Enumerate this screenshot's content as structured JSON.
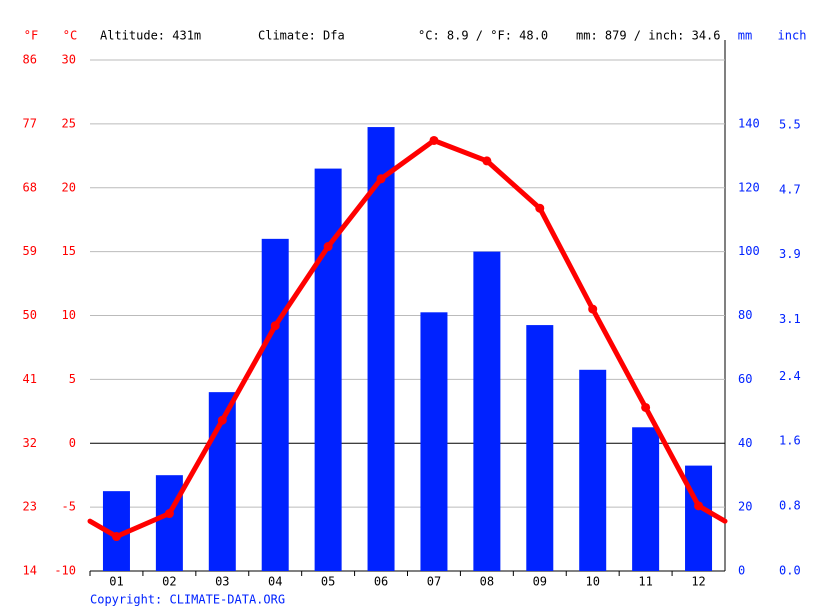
{
  "chart_data": {
    "type": "climate",
    "header": [
      "Altitude: 431m",
      "Climate: Dfa",
      "°C: 8.9 / °F: 48.0",
      "mm: 879 / inch: 34.6"
    ],
    "footer": "Copyright: CLIMATE-DATA.ORG",
    "y_label": "°C",
    "y3_label": "°F",
    "y2_label": "mm",
    "y4_label": "inch",
    "categories": [
      "01",
      "02",
      "03",
      "04",
      "05",
      "06",
      "07",
      "08",
      "09",
      "10",
      "11",
      "12"
    ],
    "series": [
      {
        "type": "bar",
        "axis": "y2",
        "color": "#0022ff",
        "values": [
          25,
          30,
          56,
          104,
          126,
          139,
          81,
          100,
          77,
          63,
          45,
          33
        ]
      },
      {
        "type": "line",
        "axis": "y",
        "color": "#ff0000",
        "values": [
          -7.3,
          -5.5,
          1.8,
          9.2,
          15.4,
          20.7,
          23.7,
          22.1,
          18.4,
          10.5,
          2.8,
          -4.9
        ]
      }
    ],
    "ylim": [
      -10,
      30
    ],
    "yticks": [
      -10,
      -5,
      0,
      5,
      10,
      15,
      20,
      25,
      30
    ],
    "y3lim": [
      14,
      86
    ],
    "y3ticks": [
      14,
      23,
      32,
      41,
      50,
      59,
      68,
      77,
      86
    ],
    "y2lim": [
      0,
      160
    ],
    "y2ticks": [
      0,
      20,
      40,
      60,
      80,
      100,
      120,
      140
    ],
    "y4lim": [
      0,
      6.3
    ],
    "y4ticks": [
      {
        "value": 0,
        "label": "0.0"
      },
      0.8,
      1.6,
      2.4,
      3.1,
      3.9,
      4.7,
      5.5
    ],
    "grid": true
  }
}
